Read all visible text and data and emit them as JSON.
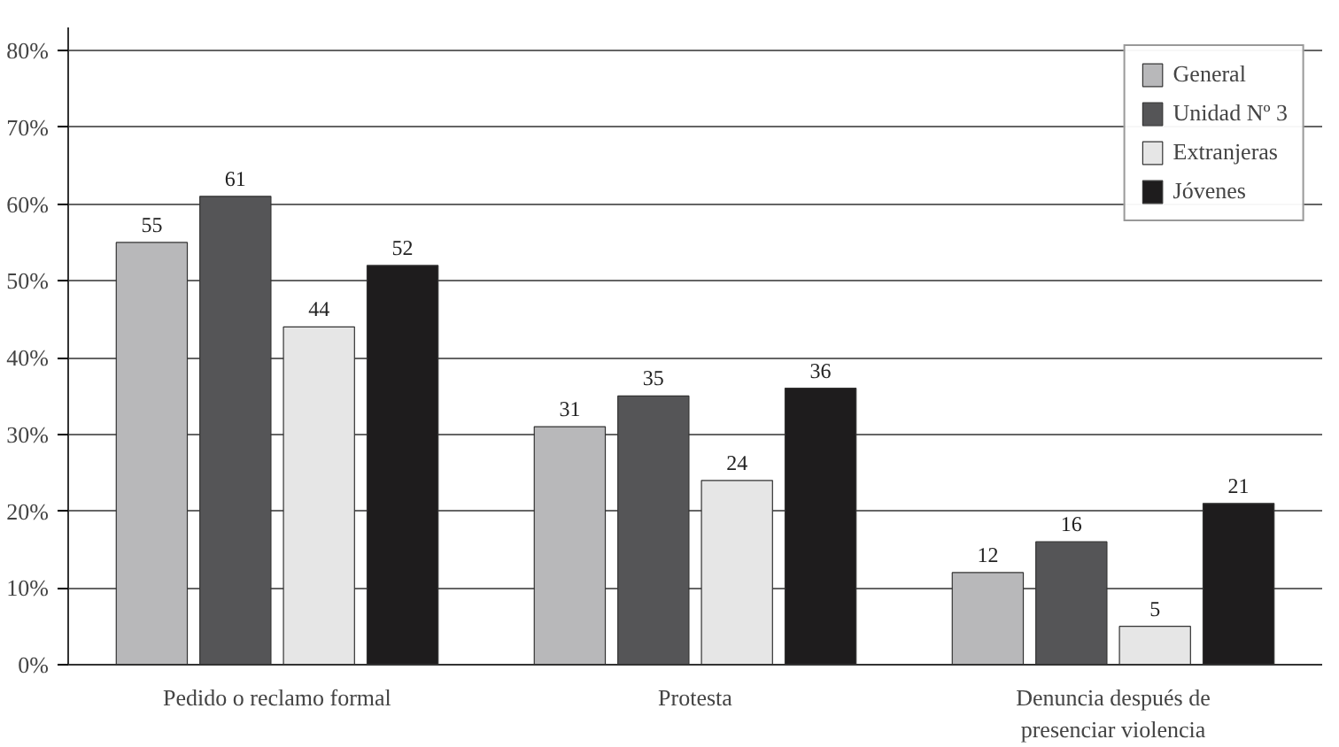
{
  "chart_data": {
    "type": "bar",
    "categories": [
      "Pedido o reclamo formal",
      "Protesta",
      "Denuncia después de\npresenciar violencia"
    ],
    "series": [
      {
        "name": "General",
        "color": "#b8b8ba",
        "values": [
          55,
          31,
          12
        ]
      },
      {
        "name": "Unidad Nº 3",
        "color": "#555557",
        "values": [
          61,
          35,
          16
        ]
      },
      {
        "name": "Extranjeras",
        "color": "#e6e6e6",
        "values": [
          44,
          24,
          5
        ]
      },
      {
        "name": "Jóvenes",
        "color": "#1e1c1d",
        "values": [
          52,
          36,
          21
        ]
      }
    ],
    "ylim": [
      0,
      83
    ],
    "yticks": [
      {
        "value": 0,
        "label": "0%"
      },
      {
        "value": 10,
        "label": "10%"
      },
      {
        "value": 20,
        "label": "20%"
      },
      {
        "value": 30,
        "label": "30%"
      },
      {
        "value": 40,
        "label": "40%"
      },
      {
        "value": 50,
        "label": "50%"
      },
      {
        "value": 60,
        "label": "60%"
      },
      {
        "value": 70,
        "label": "70%"
      },
      {
        "value": 80,
        "label": "80%"
      }
    ],
    "grid": "y",
    "legend": "top right",
    "data_labels": true
  }
}
